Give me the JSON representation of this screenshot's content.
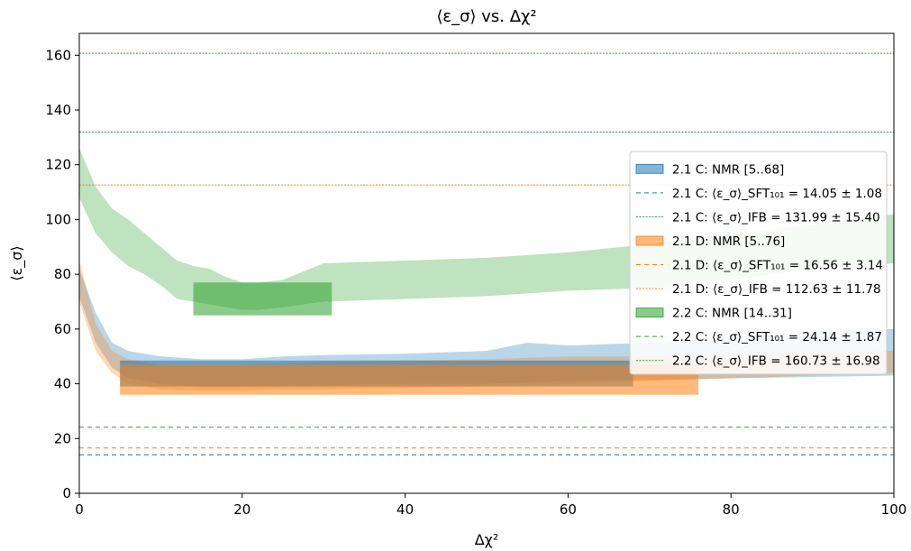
{
  "chart_data": {
    "type": "area",
    "title": "⟨ε_σ⟩  vs. Δχ²",
    "xlabel": "Δχ²",
    "ylabel": "⟨ε_σ⟩",
    "xlim": [
      0,
      100
    ],
    "ylim": [
      0,
      168
    ],
    "xticks": [
      "0",
      "20",
      "40",
      "60",
      "80",
      "100"
    ],
    "yticks": [
      "0",
      "20",
      "40",
      "60",
      "80",
      "100",
      "120",
      "140",
      "160"
    ],
    "grid": false,
    "legend_position": "right",
    "colors": {
      "blue": "#1f77b4",
      "orange": "#ff7f0e",
      "green": "#2ca02c"
    },
    "bands": [
      {
        "id": "c21",
        "color": "#1f77b4",
        "x": [
          0,
          2,
          4,
          6,
          8,
          10,
          15,
          20,
          25,
          30,
          40,
          50,
          55,
          60,
          70,
          80,
          90,
          100
        ],
        "lower": [
          72,
          55,
          46,
          42,
          41,
          40,
          39,
          39,
          39,
          39.5,
          40,
          40,
          40.5,
          41,
          41.5,
          42,
          42.5,
          43
        ],
        "upper": [
          82,
          66,
          55,
          52,
          51,
          50,
          49,
          49,
          50,
          50.5,
          51,
          52,
          55,
          54,
          55,
          57,
          59,
          60
        ]
      },
      {
        "id": "d21",
        "color": "#ff7f0e",
        "x": [
          0,
          2,
          4,
          6,
          8,
          10,
          15,
          20,
          25,
          30,
          40,
          50,
          60,
          70,
          80,
          90,
          100
        ],
        "lower": [
          70,
          52,
          44,
          40,
          39,
          38,
          37.5,
          37.5,
          38,
          38,
          38.5,
          39,
          40,
          41,
          42,
          43,
          44
        ],
        "upper": [
          85,
          62,
          52,
          49,
          48,
          47,
          47,
          47,
          47.5,
          48,
          48.5,
          49,
          50,
          50,
          51,
          51.5,
          52
        ]
      },
      {
        "id": "c22",
        "color": "#2ca02c",
        "x": [
          0,
          2,
          4,
          6,
          8,
          10,
          12,
          14,
          16,
          18,
          20,
          22,
          25,
          30,
          40,
          50,
          60,
          70,
          80,
          90,
          100
        ],
        "lower": [
          108,
          95,
          88,
          83,
          80,
          76,
          71,
          70,
          69,
          68,
          67,
          67,
          68,
          70,
          71,
          72,
          74,
          75,
          78,
          82,
          84
        ],
        "upper": [
          126,
          112,
          104,
          100,
          95,
          90,
          85,
          83,
          82,
          79,
          77,
          77,
          78,
          84,
          85,
          86,
          88,
          91,
          95,
          98,
          102
        ]
      }
    ],
    "nmr_rects": [
      {
        "x0": 5,
        "x1": 68,
        "y0": 39,
        "y1": 48.5,
        "color": "#1f77b4"
      },
      {
        "x0": 5,
        "x1": 76,
        "y0": 36,
        "y1": 47,
        "color": "#ff7f0e"
      },
      {
        "x0": 14,
        "x1": 31,
        "y0": 65,
        "y1": 77,
        "color": "#2ca02c"
      }
    ],
    "hlines": [
      {
        "y": 14.05,
        "color": "#1f77b4",
        "dash": "long"
      },
      {
        "y": 131.99,
        "color": "#1f77b4",
        "dash": "short"
      },
      {
        "y": 16.56,
        "color": "#ff7f0e",
        "dash": "long"
      },
      {
        "y": 112.63,
        "color": "#ff7f0e",
        "dash": "short"
      },
      {
        "y": 24.14,
        "color": "#2ca02c",
        "dash": "long"
      },
      {
        "y": 160.73,
        "color": "#2ca02c",
        "dash": "short"
      }
    ],
    "legend": [
      {
        "kind": "patch",
        "color": "#1f77b4",
        "text": "2.1 C: NMR [5..68]"
      },
      {
        "kind": "long",
        "color": "#1f77b4",
        "text": "2.1 C: ⟨ε_σ⟩_SFT₁₀₁ = 14.05 ± 1.08"
      },
      {
        "kind": "short",
        "color": "#1f77b4",
        "text": "2.1 C: ⟨ε_σ⟩_IFB = 131.99 ± 15.40"
      },
      {
        "kind": "patch",
        "color": "#ff7f0e",
        "text": "2.1 D: NMR [5..76]"
      },
      {
        "kind": "long",
        "color": "#ff7f0e",
        "text": "2.1 D: ⟨ε_σ⟩_SFT₁₀₁ = 16.56 ± 3.14"
      },
      {
        "kind": "short",
        "color": "#ff7f0e",
        "text": "2.1 D: ⟨ε_σ⟩_IFB = 112.63 ± 11.78"
      },
      {
        "kind": "patch",
        "color": "#2ca02c",
        "text": "2.2 C: NMR [14..31]"
      },
      {
        "kind": "long",
        "color": "#2ca02c",
        "text": "2.2 C: ⟨ε_σ⟩_SFT₁₀₁ = 24.14 ± 1.87"
      },
      {
        "kind": "short",
        "color": "#2ca02c",
        "text": "2.2 C: ⟨ε_σ⟩_IFB = 160.73 ± 16.98"
      }
    ]
  }
}
